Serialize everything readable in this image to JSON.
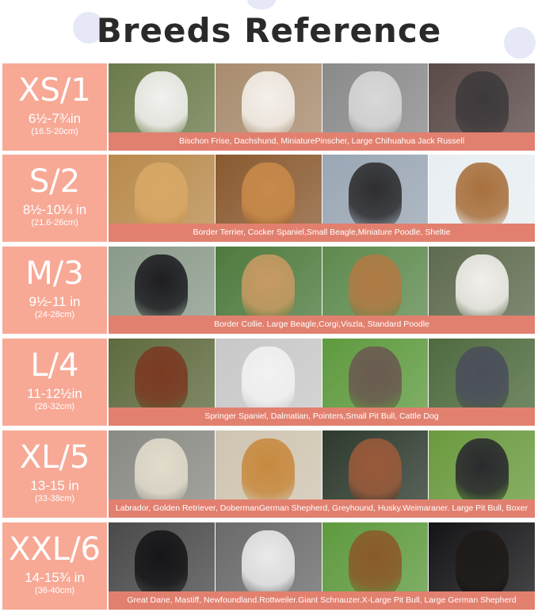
{
  "title": "Breeds Reference",
  "colors": {
    "label_bg": "#f7a996",
    "caption_bg": "#e2806f",
    "title": "#2a2a2a"
  },
  "rows": [
    {
      "size": "XS/1",
      "inches": "6½-7¾in",
      "cm": "(16.5-20cm)",
      "breeds": "Bischon Frise, Dachshund, MiniaturePinscher, Large Chihuahua Jack Russell",
      "photos": [
        [
          "#6b7a4a",
          "#f2f2f0"
        ],
        [
          "#a88c6e",
          "#f4f0ea"
        ],
        [
          "#8a8a8a",
          "#d8d8d8"
        ],
        [
          "#5a4a48",
          "#3e3a3c"
        ]
      ]
    },
    {
      "size": "S/2",
      "inches": "8½-10¼ in",
      "cm": "(21.6-26cm)",
      "breeds": "Border Terrier, Cocker Spaniel,Small Beagle,Miniature Poodle, Sheltie",
      "photos": [
        [
          "#b98a4c",
          "#d8a866"
        ],
        [
          "#8a5a30",
          "#c98a4a"
        ],
        [
          "#9aa6b4",
          "#2e2e30"
        ],
        [
          "#e8eef2",
          "#a8703c"
        ]
      ]
    },
    {
      "size": "M/3",
      "inches": "9½-11 in",
      "cm": "(24-28cm)",
      "breeds": "Border Collie. Large Beagle,Corgi,Viszla, Standard Poodle",
      "photos": [
        [
          "#8a9a8a",
          "#1e1e22"
        ],
        [
          "#4e7a3e",
          "#c79a62"
        ],
        [
          "#5e8a4e",
          "#b07a44"
        ],
        [
          "#5e6a4e",
          "#f2f0ec"
        ]
      ]
    },
    {
      "size": "L/4",
      "inches": "11-12½in",
      "cm": "(28-32cm)",
      "breeds": "Springer Spaniel, Dalmatian, Pointers,Small Pit Bull, Cattle Dog",
      "photos": [
        [
          "#5e6a3e",
          "#7a3a22"
        ],
        [
          "#c8c8c8",
          "#f2f2f2"
        ],
        [
          "#5e9a3e",
          "#6a5a50"
        ],
        [
          "#4e6a3e",
          "#4a4e5a"
        ]
      ]
    },
    {
      "size": "XL/5",
      "inches": "13-15 in",
      "cm": "(33-38cm)",
      "breeds": "Labrador, Golden Retriever, DobermanGerman Shepherd, Greyhound, Husky.Weimaraner. Large Pit Bull, Boxer",
      "photos": [
        [
          "#8a8a84",
          "#e2dccc"
        ],
        [
          "#cfc4b0",
          "#c88a40"
        ],
        [
          "#2e3a2e",
          "#9a5a3a"
        ],
        [
          "#6a9a3e",
          "#2a2a2e"
        ]
      ]
    },
    {
      "size": "XXL/6",
      "inches": "14-15¾ in",
      "cm": "(36-40cm)",
      "breeds": "Great Dane, Mastiff, Newfoundland.Rottweiler.Giant Schnauzer.X-Large Pit Bull, Large German Shepherd",
      "photos": [
        [
          "#4a4a4a",
          "#161618"
        ],
        [
          "#6a6a6a",
          "#eaeaea"
        ],
        [
          "#5e9a3e",
          "#8a5a2a"
        ],
        [
          "#141416",
          "#1e1a18"
        ]
      ]
    }
  ]
}
